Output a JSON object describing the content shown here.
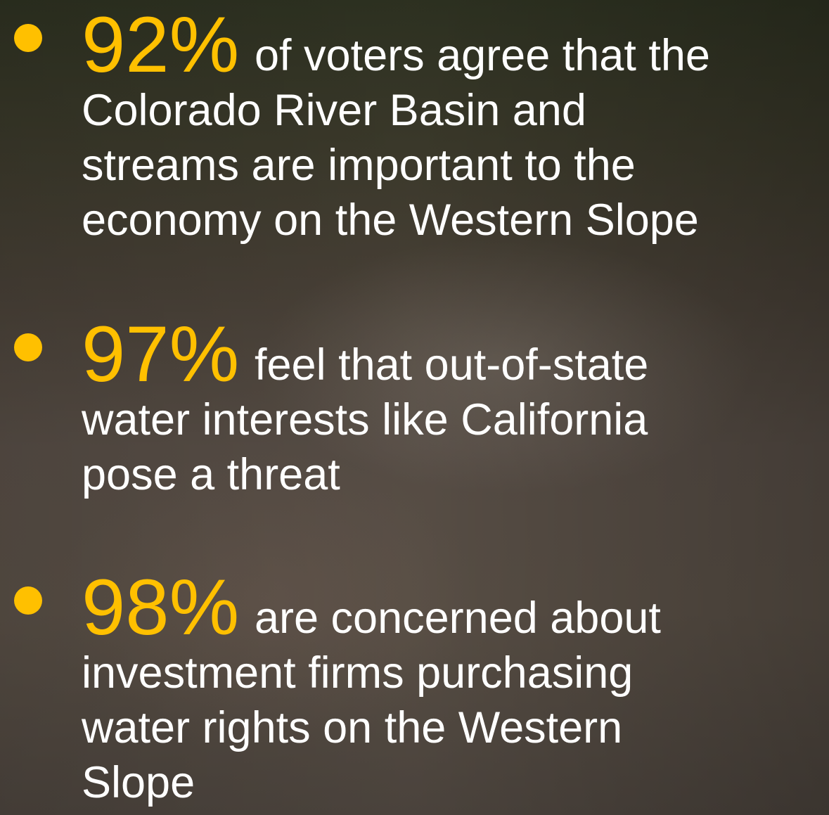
{
  "bullets": [
    {
      "stat": "92%",
      "lines": [
        "of voters agree that the",
        "Colorado River Basin and",
        "streams are important to the",
        "economy on the Western Slope"
      ]
    },
    {
      "stat": "97%",
      "lines": [
        "feel that out-of-state",
        "water interests like California",
        "pose a threat"
      ]
    },
    {
      "stat": "98%",
      "lines": [
        "are concerned about",
        "investment firms purchasing",
        "water rights on the Western",
        "Slope"
      ]
    }
  ]
}
